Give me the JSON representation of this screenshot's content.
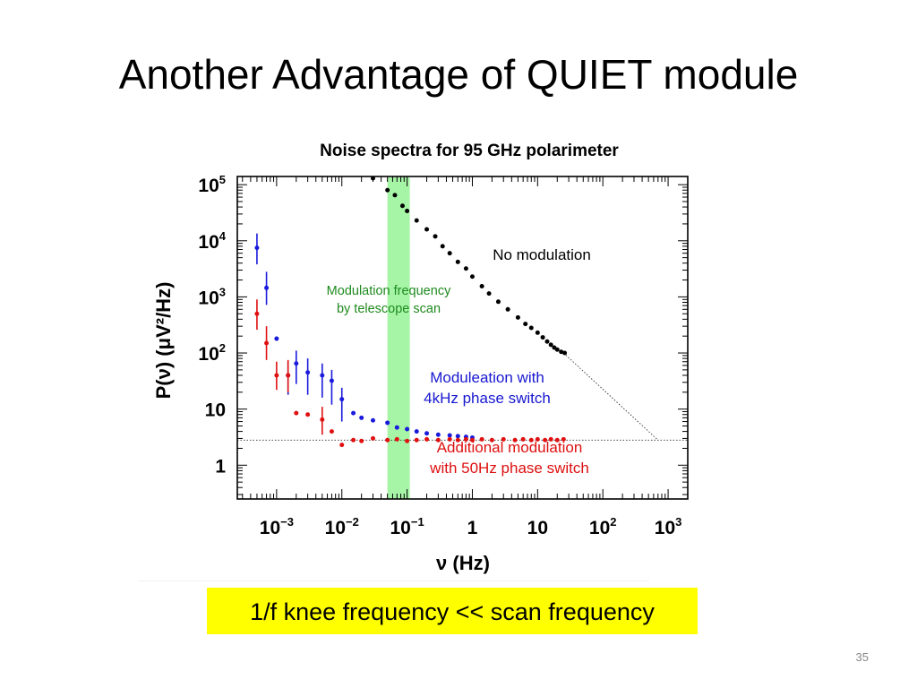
{
  "slide": {
    "title": "Another Advantage of QUIET module",
    "page_number": "35",
    "callout": "1/f knee frequency << scan frequency"
  },
  "colors": {
    "no_modulation": "#000000",
    "phase_switch_4khz": "#1a1adc",
    "phase_switch_50hz": "#e01010",
    "scan_band": "#a6f5a6",
    "callout_background": "#ffff00"
  },
  "chart_data": {
    "type": "scatter",
    "title": "Noise spectra for 95 GHz polarimeter",
    "xlabel": "ν (Hz)",
    "ylabel": "P(ν) (μV²/Hz)",
    "xscale": "log",
    "yscale": "log",
    "xlim": [
      0.00025,
      2000
    ],
    "ylim": [
      0.25,
      140000
    ],
    "x_ticks": [
      {
        "base": "10",
        "exp": "−3",
        "value": 0.001
      },
      {
        "base": "10",
        "exp": "−2",
        "value": 0.01
      },
      {
        "base": "10",
        "exp": "−1",
        "value": 0.1
      },
      {
        "base": "1",
        "exp": "",
        "value": 1
      },
      {
        "base": "10",
        "exp": "",
        "value": 10
      },
      {
        "base": "10",
        "exp": "2",
        "value": 100
      },
      {
        "base": "10",
        "exp": "3",
        "value": 1000
      }
    ],
    "y_ticks": [
      {
        "base": "10",
        "exp": "5",
        "value": 100000
      },
      {
        "base": "10",
        "exp": "4",
        "value": 10000
      },
      {
        "base": "10",
        "exp": "3",
        "value": 1000
      },
      {
        "base": "10",
        "exp": "2",
        "value": 100
      },
      {
        "base": "10",
        "exp": "",
        "value": 10
      },
      {
        "base": "1",
        "exp": "",
        "value": 1
      }
    ],
    "shaded_band": {
      "x_range": [
        0.05,
        0.11
      ],
      "label": "Modulation frequency by telescope scan"
    },
    "reference_line": {
      "y": 2.8,
      "style": "dotted"
    },
    "guide_line": {
      "from": [
        25,
        100
      ],
      "to": [
        700,
        2.8
      ],
      "style": "dotted"
    },
    "annotations": {
      "no_modulation": "No modulation",
      "scan_line1": "Modulation frequency",
      "scan_line2": "by telescope scan",
      "phase4k_line1": "Moduleation with",
      "phase4k_line2": "4kHz phase switch",
      "phase50_line1": "Additional modulation",
      "phase50_line2": "with 50Hz phase switch"
    },
    "series": [
      {
        "name": "No modulation",
        "x": [
          0.03,
          0.05,
          0.065,
          0.085,
          0.1,
          0.14,
          0.2,
          0.27,
          0.35,
          0.45,
          0.6,
          0.8,
          1.0,
          1.4,
          1.8,
          2.5,
          3.5,
          5,
          6.5,
          8,
          10,
          12,
          14,
          16,
          18,
          20,
          23,
          26
        ],
        "y": [
          130000,
          80000,
          65000,
          42000,
          34000,
          23000,
          16000,
          12000,
          8000,
          6000,
          4200,
          3200,
          2300,
          1550,
          1150,
          820,
          600,
          430,
          330,
          280,
          230,
          190,
          160,
          140,
          125,
          115,
          105,
          100
        ]
      },
      {
        "name": "Moduleation with 4kHz phase switch",
        "x": [
          0.0005,
          0.0007,
          0.001,
          0.0015,
          0.002,
          0.003,
          0.005,
          0.007,
          0.01,
          0.015,
          0.02,
          0.03,
          0.05,
          0.07,
          0.1,
          0.14,
          0.2,
          0.3,
          0.45,
          0.6,
          0.8,
          1.0
        ],
        "y": [
          7500,
          1450,
          180,
          40,
          65,
          45,
          40,
          32,
          15,
          8.5,
          7.0,
          6.3,
          5.7,
          4.7,
          4.4,
          4.0,
          3.7,
          3.5,
          3.4,
          3.3,
          3.2,
          3.1
        ],
        "y_err_low": [
          3800,
          720,
          0,
          18,
          28,
          18,
          16,
          12,
          6,
          0,
          0,
          0,
          0,
          0,
          0,
          0,
          0,
          0,
          0,
          0,
          0,
          0
        ],
        "y_err_high": [
          13500,
          2800,
          0,
          70,
          110,
          80,
          65,
          50,
          24,
          0,
          0,
          0,
          0,
          0,
          0,
          0,
          0,
          0,
          0,
          0,
          0,
          0
        ]
      },
      {
        "name": "Additional modulation with 50Hz phase switch",
        "x": [
          0.0005,
          0.0007,
          0.001,
          0.0015,
          0.002,
          0.003,
          0.005,
          0.007,
          0.01,
          0.015,
          0.02,
          0.03,
          0.05,
          0.07,
          0.1,
          0.14,
          0.2,
          0.3,
          0.45,
          0.6,
          0.8,
          1.0,
          1.4,
          2.0,
          3.0,
          4.5,
          6.0,
          8.0,
          10,
          13,
          16,
          20,
          25
        ],
        "y": [
          500,
          150,
          40,
          40,
          8.5,
          8.0,
          6.5,
          4.0,
          2.3,
          2.8,
          2.7,
          3.0,
          2.8,
          2.9,
          2.7,
          2.8,
          2.9,
          2.8,
          2.9,
          2.8,
          2.9,
          2.8,
          2.9,
          2.8,
          2.9,
          2.8,
          2.9,
          2.8,
          2.9,
          2.8,
          2.9,
          2.8,
          2.9
        ],
        "y_err_low": [
          260,
          75,
          22,
          20,
          0,
          0,
          3.5,
          0,
          0,
          0,
          0,
          0,
          0,
          0,
          0,
          0,
          0,
          0,
          0,
          0,
          0,
          0,
          0,
          0,
          0,
          0,
          0,
          0,
          0,
          0,
          0,
          0,
          0
        ],
        "y_err_high": [
          900,
          300,
          70,
          75,
          0,
          0,
          11,
          0,
          0,
          0,
          0,
          0,
          0,
          0,
          0,
          0,
          0,
          0,
          0,
          0,
          0,
          0,
          0,
          0,
          0,
          0,
          0,
          0,
          0,
          0,
          0,
          0,
          0
        ]
      }
    ]
  }
}
